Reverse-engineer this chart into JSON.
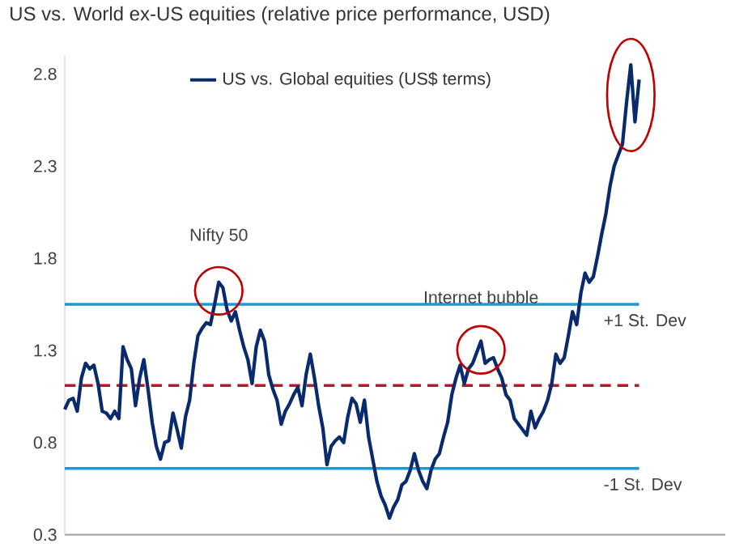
{
  "chart_data": {
    "type": "line",
    "title": "US vs. World ex-US equities (relative price performance, USD)",
    "categories": [
      null,
      null,
      null,
      null,
      null,
      null,
      null,
      null,
      null,
      null,
      null,
      null,
      null,
      null,
      null,
      null,
      null,
      null,
      null,
      null,
      null,
      null,
      null,
      null,
      null,
      null,
      null,
      null,
      null,
      null,
      null,
      null,
      null,
      null,
      null,
      null,
      null,
      null,
      null,
      null,
      null,
      null,
      null,
      null,
      null,
      null,
      null,
      null,
      null,
      null,
      null,
      null,
      null,
      null,
      null,
      null,
      null,
      null,
      null,
      null,
      null,
      null,
      null,
      null,
      null,
      null,
      null,
      null,
      null,
      null,
      null,
      null,
      null,
      null,
      null,
      null,
      null,
      null,
      null,
      null,
      null,
      null,
      null,
      null,
      null,
      null,
      null,
      null,
      null,
      null,
      null,
      null,
      null,
      null,
      null,
      null,
      null,
      null,
      null,
      null,
      null,
      null,
      null,
      null,
      null,
      null,
      null,
      null,
      null,
      null,
      null,
      null,
      null,
      null,
      null,
      null,
      null,
      null,
      null,
      null,
      null,
      null,
      null,
      null,
      null,
      null,
      null,
      null,
      null,
      null,
      null,
      null,
      null,
      null,
      null,
      null,
      null,
      null,
      null
    ],
    "series": [
      {
        "name": "US vs. Global equities (US$ terms)",
        "color": "#0a2a6e",
        "values": [
          0.98,
          1.03,
          1.04,
          0.97,
          1.15,
          1.23,
          1.2,
          1.22,
          1.12,
          0.97,
          0.96,
          0.93,
          0.97,
          0.93,
          1.32,
          1.25,
          1.2,
          1.0,
          1.15,
          1.25,
          1.09,
          0.91,
          0.78,
          0.71,
          0.8,
          0.81,
          0.96,
          0.87,
          0.77,
          0.94,
          1.03,
          1.23,
          1.38,
          1.42,
          1.45,
          1.44,
          1.55,
          1.67,
          1.64,
          1.52,
          1.46,
          1.51,
          1.41,
          1.32,
          1.25,
          1.12,
          1.32,
          1.41,
          1.35,
          1.17,
          1.09,
          1.03,
          0.9,
          0.97,
          1.01,
          1.06,
          1.1,
          1.0,
          1.17,
          1.28,
          1.15,
          1.0,
          0.88,
          0.68,
          0.78,
          0.81,
          0.83,
          0.8,
          0.94,
          1.04,
          1.01,
          0.91,
          1.03,
          0.83,
          0.71,
          0.59,
          0.51,
          0.46,
          0.39,
          0.45,
          0.49,
          0.57,
          0.59,
          0.65,
          0.74,
          0.65,
          0.59,
          0.55,
          0.65,
          0.71,
          0.74,
          0.83,
          0.91,
          1.06,
          1.15,
          1.22,
          1.12,
          1.2,
          1.23,
          1.29,
          1.35,
          1.23,
          1.25,
          1.26,
          1.2,
          1.15,
          1.06,
          1.03,
          0.93,
          0.9,
          0.87,
          0.84,
          0.97,
          0.88,
          0.93,
          0.97,
          1.03,
          1.12,
          1.28,
          1.23,
          1.26,
          1.38,
          1.51,
          1.44,
          1.61,
          1.72,
          1.67,
          1.7,
          1.81,
          1.93,
          2.04,
          2.19,
          2.3,
          2.36,
          2.42,
          2.65,
          2.85,
          2.54,
          2.77
        ]
      }
    ],
    "ylim": [
      0.3,
      2.9
    ],
    "yticks": [
      0.3,
      0.8,
      1.3,
      1.8,
      2.3,
      2.8
    ],
    "legend": "top",
    "ref_lines": [
      {
        "axis": "y",
        "value": 1.55,
        "label": "+1 St. Dev",
        "color": "#1b9ad6",
        "line_style": "solid"
      },
      {
        "axis": "y",
        "value": 1.11,
        "color": "#b01c2e",
        "line_style": "dashed"
      },
      {
        "axis": "y",
        "value": 0.66,
        "label": "-1 St. Dev",
        "color": "#1b9ad6",
        "line_style": "solid"
      }
    ],
    "annotations": [
      "Nifty 50",
      "Internet bubble"
    ]
  }
}
